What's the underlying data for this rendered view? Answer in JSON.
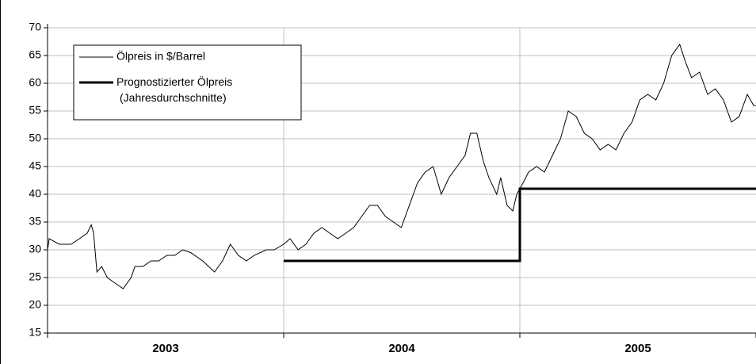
{
  "chart_data": {
    "type": "line",
    "categories": [
      "2003",
      "2004",
      "2005"
    ],
    "xlim": [
      2003,
      2006
    ],
    "xticks": [
      2003,
      2004,
      2005,
      2006
    ],
    "ylim": [
      15,
      70
    ],
    "yticks": [
      15,
      20,
      25,
      30,
      35,
      40,
      45,
      50,
      55,
      60,
      65,
      70
    ],
    "grid": true,
    "legend": "upper left",
    "series": [
      {
        "name": "Ölpreis in $/Barrel",
        "color": "#000000",
        "width": 1,
        "x": [
          2003.0,
          2003.007,
          2003.05,
          2003.1,
          2003.135,
          2003.168,
          2003.185,
          2003.195,
          2003.209,
          2003.229,
          2003.253,
          2003.286,
          2003.32,
          2003.354,
          2003.37,
          2003.404,
          2003.438,
          2003.471,
          2003.505,
          2003.539,
          2003.572,
          2003.606,
          2003.657,
          2003.707,
          2003.741,
          2003.774,
          2003.808,
          2003.842,
          2003.875,
          2003.926,
          2003.96,
          2004.0,
          2004.027,
          2004.061,
          2004.094,
          2004.128,
          2004.162,
          2004.195,
          2004.229,
          2004.263,
          2004.296,
          2004.33,
          2004.364,
          2004.397,
          2004.431,
          2004.465,
          2004.498,
          2004.532,
          2004.566,
          2004.599,
          2004.633,
          2004.667,
          2004.7,
          2004.734,
          2004.768,
          2004.791,
          2004.818,
          2004.845,
          2004.869,
          2004.902,
          2004.919,
          2004.946,
          2004.97,
          2004.987,
          2005.013,
          2005.037,
          2005.071,
          2005.104,
          2005.138,
          2005.172,
          2005.205,
          2005.239,
          2005.273,
          2005.306,
          2005.34,
          2005.374,
          2005.407,
          2005.441,
          2005.475,
          2005.508,
          2005.542,
          2005.576,
          2005.609,
          2005.643,
          2005.677,
          2005.7,
          2005.727,
          2005.761,
          2005.795,
          2005.828,
          2005.862,
          2005.896,
          2005.929,
          2005.963,
          2005.99,
          2006.0
        ],
        "values": [
          30,
          32,
          31,
          31,
          32,
          33,
          34.5,
          33,
          26,
          27,
          25,
          24,
          23,
          25,
          27,
          27,
          28,
          28,
          29,
          29,
          30,
          29.5,
          28,
          26,
          28,
          31,
          29,
          28,
          29,
          30,
          30,
          31,
          32,
          30,
          31,
          33,
          34,
          33,
          32,
          33,
          34,
          36,
          38,
          38,
          36,
          35,
          34,
          38,
          42,
          44,
          45,
          40,
          43,
          45,
          47,
          51,
          51,
          46,
          43,
          40,
          43,
          38,
          37,
          40,
          42,
          44,
          45,
          44,
          47,
          50,
          55,
          54,
          51,
          50,
          48,
          49,
          48,
          51,
          53,
          57,
          58,
          57,
          60,
          65,
          67,
          64,
          61,
          62,
          58,
          59,
          57,
          53,
          54,
          58,
          56,
          56
        ]
      },
      {
        "name": "Prognostizierter Ölpreis (Jahresdurchschnitte)",
        "color": "#000000",
        "width": 3,
        "x": [
          2004,
          2005,
          2005,
          2006
        ],
        "values": [
          28,
          28,
          41,
          41
        ]
      }
    ]
  }
}
